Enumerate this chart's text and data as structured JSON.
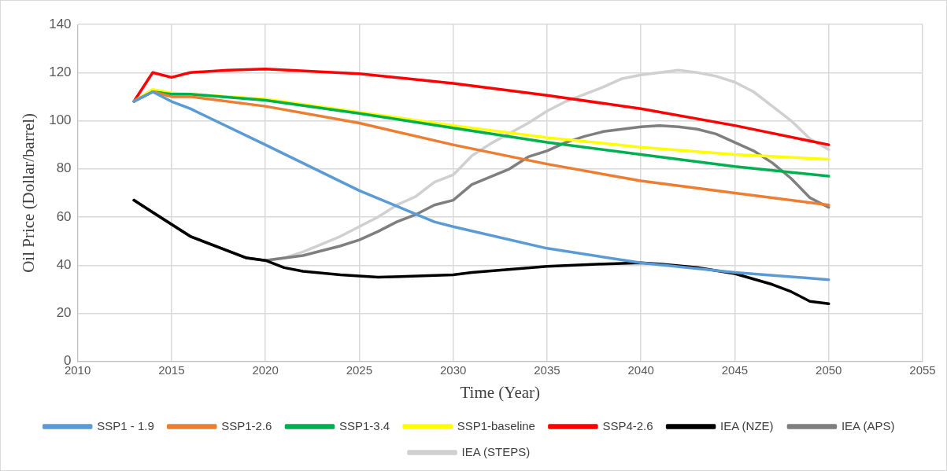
{
  "chart_data": {
    "type": "line",
    "xlabel": "Time (Year)",
    "ylabel": "Oil Price (Dollar/barrel)",
    "xlim": [
      2010,
      2055
    ],
    "xticks": [
      2010,
      2015,
      2020,
      2025,
      2030,
      2035,
      2040,
      2045,
      2050,
      2055
    ],
    "ylim": [
      0,
      140
    ],
    "yticks": [
      0,
      20,
      40,
      60,
      80,
      100,
      120,
      140
    ],
    "grid": true,
    "legend": "bottom",
    "marker": "none",
    "line_style": "solid",
    "series": [
      {
        "name": "SSP1 - 1.9",
        "color": "#5b9bd5",
        "x": [
          2013,
          2014,
          2015,
          2016,
          2020,
          2025,
          2029,
          2030,
          2035,
          2040,
          2045,
          2050
        ],
        "values": [
          108,
          112,
          108,
          105,
          90,
          71,
          58,
          56,
          47,
          41,
          37,
          34
        ]
      },
      {
        "name": "SSP1-2.6",
        "color": "#ed7d31",
        "x": [
          2013,
          2014,
          2015,
          2016,
          2020,
          2025,
          2030,
          2035,
          2040,
          2045,
          2050
        ],
        "values": [
          108,
          112,
          110,
          110,
          106,
          99,
          90,
          82,
          75,
          70,
          65
        ]
      },
      {
        "name": "SSP1-3.4",
        "color": "#00b050",
        "x": [
          2013,
          2014,
          2015,
          2016,
          2020,
          2025,
          2030,
          2035,
          2040,
          2045,
          2050
        ],
        "values": [
          108,
          112,
          111,
          111,
          108.5,
          103,
          97,
          91,
          86,
          81,
          77
        ]
      },
      {
        "name": "SSP1-baseline",
        "color": "#ffff00",
        "x": [
          2013,
          2014,
          2015,
          2016,
          2020,
          2025,
          2030,
          2035,
          2040,
          2045,
          2050
        ],
        "values": [
          108,
          113,
          111.5,
          111,
          109,
          103.5,
          98,
          93,
          89,
          86,
          84
        ]
      },
      {
        "name": "SSP4-2.6",
        "color": "#ff0000",
        "x": [
          2013,
          2014,
          2015,
          2016,
          2018,
          2020,
          2025,
          2030,
          2035,
          2040,
          2045,
          2050
        ],
        "values": [
          108,
          120,
          118,
          120,
          121,
          121.5,
          119.5,
          115.5,
          110.5,
          105,
          98,
          90
        ]
      },
      {
        "name": "IEA (NZE)",
        "color": "#000000",
        "x": [
          2013,
          2014,
          2016,
          2019,
          2020,
          2021,
          2022,
          2024,
          2026,
          2030,
          2031,
          2035,
          2038,
          2040,
          2041,
          2043,
          2045,
          2047,
          2048,
          2049,
          2050
        ],
        "values": [
          67,
          62,
          52,
          43,
          42,
          39,
          37.5,
          36,
          35,
          36,
          37,
          39.5,
          40.5,
          41,
          40.5,
          39,
          36.5,
          32,
          29,
          25,
          24
        ]
      },
      {
        "name": "IEA (APS)",
        "color": "#7f7f7f",
        "x": [
          2013,
          2014,
          2016,
          2019,
          2020,
          2022,
          2024,
          2025,
          2026,
          2027,
          2028,
          2029,
          2030,
          2031,
          2033,
          2034,
          2035,
          2036,
          2037,
          2038,
          2040,
          2041,
          2042,
          2043,
          2044,
          2045,
          2046,
          2047,
          2048,
          2049,
          2050
        ],
        "values": [
          67,
          62,
          52,
          43,
          42,
          44,
          48,
          50.5,
          54,
          58,
          61,
          65,
          67,
          73.5,
          80,
          85,
          87.5,
          91,
          93.5,
          95.5,
          97.5,
          98,
          97.5,
          96.5,
          94.5,
          91,
          87.5,
          82.5,
          76,
          68,
          64
        ]
      },
      {
        "name": "IEA (STEPS)",
        "color": "#d0d0d0",
        "x": [
          2013,
          2014,
          2016,
          2019,
          2020,
          2021,
          2022,
          2024,
          2025,
          2026,
          2027,
          2028,
          2029,
          2030,
          2031,
          2032,
          2034,
          2035,
          2036,
          2038,
          2039,
          2040,
          2041,
          2042,
          2043,
          2044,
          2045,
          2046,
          2047,
          2048,
          2049,
          2050
        ],
        "values": [
          67,
          62,
          52,
          43,
          42,
          43,
          45.5,
          52,
          56,
          60,
          65,
          68.5,
          74.5,
          77.5,
          85.5,
          90.5,
          99,
          104,
          108,
          114,
          117.5,
          119,
          120,
          121,
          120,
          118.5,
          116,
          112,
          106,
          100,
          92.5,
          88
        ]
      }
    ]
  }
}
